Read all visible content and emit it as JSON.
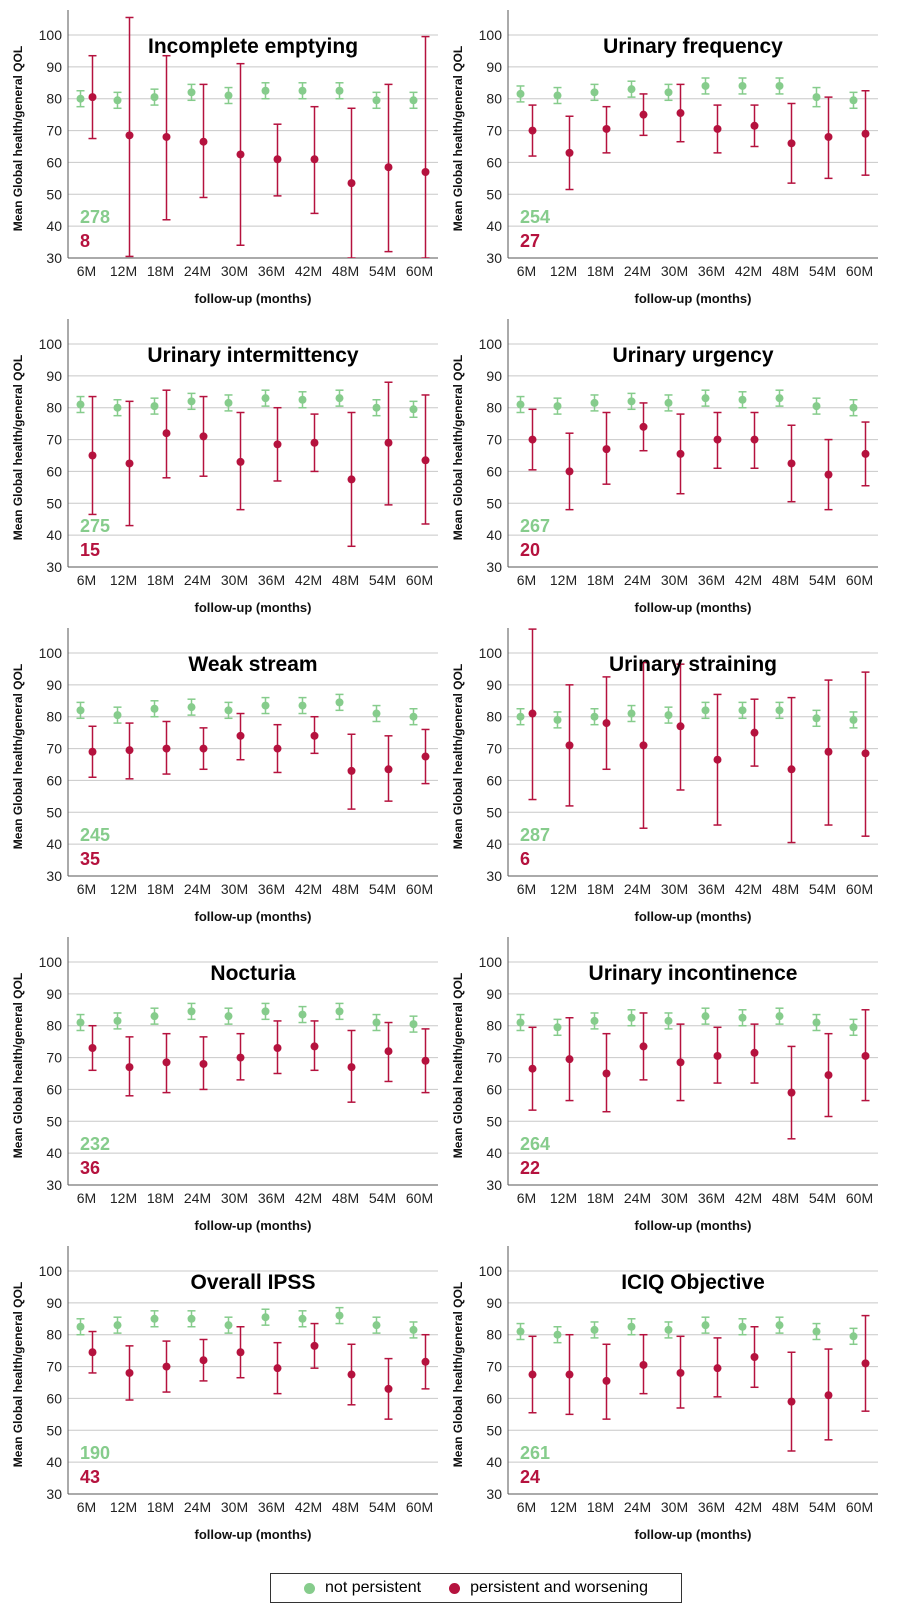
{
  "legend": {
    "not_persistent_label": "not persistent",
    "persistent_label": "persistent and worsening"
  },
  "colors": {
    "not_persistent": "#86cc8c",
    "persistent": "#b5123e",
    "grid": "#c8c8c8",
    "axis": "#555555"
  },
  "chart_data": [
    {
      "type": "scatter",
      "title": "Incomplete emptying",
      "xlabel": "follow-up (months)",
      "ylabel": "Mean Global health/general QOL",
      "ylim": [
        30,
        100
      ],
      "yticks": [
        30,
        40,
        50,
        60,
        70,
        80,
        90,
        100
      ],
      "categories": [
        "6M",
        "12M",
        "18M",
        "24M",
        "30M",
        "36M",
        "42M",
        "48M",
        "54M",
        "60M"
      ],
      "counts": {
        "not_persistent": "278",
        "persistent": "8"
      },
      "series": [
        {
          "name": "not persistent",
          "values": [
            80,
            79.5,
            80.5,
            82,
            81,
            82.5,
            82.5,
            82.5,
            79.5,
            79.5
          ],
          "lower": [
            77.5,
            77,
            78,
            79.5,
            78.5,
            80,
            80,
            80,
            77,
            77
          ],
          "upper": [
            82.5,
            82,
            83,
            84.5,
            83.5,
            85,
            85,
            85,
            82,
            82
          ]
        },
        {
          "name": "persistent and worsening",
          "values": [
            80.5,
            68.5,
            68,
            66.5,
            62.5,
            61,
            61,
            53.5,
            58.5,
            57
          ],
          "lower": [
            67.5,
            30.5,
            42,
            49,
            34,
            49.5,
            44,
            30,
            32,
            30
          ],
          "upper": [
            93.5,
            105.5,
            93.5,
            84.5,
            91,
            72,
            77.5,
            77,
            84.5,
            99.5
          ]
        }
      ]
    },
    {
      "type": "scatter",
      "title": "Urinary frequency",
      "xlabel": "follow-up (months)",
      "ylabel": "Mean Global health/general QOL",
      "ylim": [
        30,
        100
      ],
      "yticks": [
        30,
        40,
        50,
        60,
        70,
        80,
        90,
        100
      ],
      "categories": [
        "6M",
        "12M",
        "18M",
        "24M",
        "30M",
        "36M",
        "42M",
        "48M",
        "54M",
        "60M"
      ],
      "counts": {
        "not_persistent": "254",
        "persistent": "27"
      },
      "series": [
        {
          "name": "not persistent",
          "values": [
            81.5,
            81,
            82,
            83,
            82,
            84,
            84,
            84,
            80.5,
            79.5
          ],
          "lower": [
            79,
            78.5,
            79.5,
            80.5,
            79.5,
            81.5,
            81.5,
            81.5,
            77.5,
            77
          ],
          "upper": [
            84,
            83.5,
            84.5,
            85.5,
            84.5,
            86.5,
            86.5,
            86.5,
            83.5,
            82
          ]
        },
        {
          "name": "persistent and worsening",
          "values": [
            70,
            63,
            70.5,
            75,
            75.5,
            70.5,
            71.5,
            66,
            68,
            69
          ],
          "lower": [
            62,
            51.5,
            63,
            68.5,
            66.5,
            63,
            65,
            53.5,
            55,
            56
          ],
          "upper": [
            78,
            74.5,
            77.5,
            81.5,
            84.5,
            78,
            78,
            78.5,
            80.5,
            82.5
          ]
        }
      ]
    },
    {
      "type": "scatter",
      "title": "Urinary intermittency",
      "xlabel": "follow-up (months)",
      "ylabel": "Mean Global health/general QOL",
      "ylim": [
        30,
        100
      ],
      "yticks": [
        30,
        40,
        50,
        60,
        70,
        80,
        90,
        100
      ],
      "categories": [
        "6M",
        "12M",
        "18M",
        "24M",
        "30M",
        "36M",
        "42M",
        "48M",
        "54M",
        "60M"
      ],
      "counts": {
        "not_persistent": "275",
        "persistent": "15"
      },
      "series": [
        {
          "name": "not persistent",
          "values": [
            81,
            80,
            80.5,
            82,
            81.5,
            83,
            82.5,
            83,
            80,
            79.5
          ],
          "lower": [
            78.5,
            77.5,
            78,
            79.5,
            79,
            80.5,
            80,
            80.5,
            77.5,
            77
          ],
          "upper": [
            83.5,
            82.5,
            83,
            84.5,
            84,
            85.5,
            85,
            85.5,
            82.5,
            82
          ]
        },
        {
          "name": "persistent and worsening",
          "values": [
            65,
            62.5,
            72,
            71,
            63,
            68.5,
            69,
            57.5,
            69,
            63.5
          ],
          "lower": [
            46.5,
            43,
            58,
            58.5,
            48,
            57,
            60,
            36.5,
            49.5,
            43.5
          ],
          "upper": [
            83.5,
            82,
            85.5,
            83.5,
            78.5,
            80,
            78,
            78.5,
            88,
            84
          ]
        }
      ]
    },
    {
      "type": "scatter",
      "title": "Urinary urgency",
      "xlabel": "follow-up (months)",
      "ylabel": "Mean Global health/general QOL",
      "ylim": [
        30,
        100
      ],
      "yticks": [
        30,
        40,
        50,
        60,
        70,
        80,
        90,
        100
      ],
      "categories": [
        "6M",
        "12M",
        "18M",
        "24M",
        "30M",
        "36M",
        "42M",
        "48M",
        "54M",
        "60M"
      ],
      "counts": {
        "not_persistent": "267",
        "persistent": "20"
      },
      "series": [
        {
          "name": "not persistent",
          "values": [
            81,
            80.5,
            81.5,
            82,
            81.5,
            83,
            82.5,
            83,
            80.5,
            80
          ],
          "lower": [
            78.5,
            78,
            79,
            79.5,
            79,
            80.5,
            80,
            80.5,
            78,
            77.5
          ],
          "upper": [
            83.5,
            83,
            84,
            84.5,
            84,
            85.5,
            85,
            85.5,
            83,
            82.5
          ]
        },
        {
          "name": "persistent and worsening",
          "values": [
            70,
            60,
            67,
            74,
            65.5,
            70,
            70,
            62.5,
            59,
            65.5
          ],
          "lower": [
            60.5,
            48,
            56,
            66.5,
            53,
            61,
            61,
            50.5,
            48,
            55.5
          ],
          "upper": [
            79.5,
            72,
            78.5,
            81.5,
            78,
            78.5,
            78.5,
            74.5,
            70,
            75.5
          ]
        }
      ]
    },
    {
      "type": "scatter",
      "title": "Weak stream",
      "xlabel": "follow-up (months)",
      "ylabel": "Mean Global health/general QOL",
      "ylim": [
        30,
        100
      ],
      "yticks": [
        30,
        40,
        50,
        60,
        70,
        80,
        90,
        100
      ],
      "categories": [
        "6M",
        "12M",
        "18M",
        "24M",
        "30M",
        "36M",
        "42M",
        "48M",
        "54M",
        "60M"
      ],
      "counts": {
        "not_persistent": "245",
        "persistent": "35"
      },
      "series": [
        {
          "name": "not persistent",
          "values": [
            82,
            80.5,
            82.5,
            83,
            82,
            83.5,
            83.5,
            84.5,
            81,
            80
          ],
          "lower": [
            79.5,
            78,
            80,
            80.5,
            79.5,
            81,
            81,
            82,
            78.5,
            77.5
          ],
          "upper": [
            84.5,
            83,
            85,
            85.5,
            84.5,
            86,
            86,
            87,
            83.5,
            82.5
          ]
        },
        {
          "name": "persistent and worsening",
          "values": [
            69,
            69.5,
            70,
            70,
            74,
            70,
            74,
            63,
            63.5,
            67.5
          ],
          "lower": [
            61,
            60.5,
            62,
            63.5,
            66.5,
            62.5,
            68.5,
            51,
            53.5,
            59
          ],
          "upper": [
            77,
            78,
            78.5,
            76.5,
            81,
            77.5,
            80,
            74.5,
            74,
            76
          ]
        }
      ]
    },
    {
      "type": "scatter",
      "title": "Urinary straining",
      "xlabel": "follow-up (months)",
      "ylabel": "Mean Global health/general QOL",
      "ylim": [
        30,
        100
      ],
      "yticks": [
        30,
        40,
        50,
        60,
        70,
        80,
        90,
        100
      ],
      "categories": [
        "6M",
        "12M",
        "18M",
        "24M",
        "30M",
        "36M",
        "42M",
        "48M",
        "54M",
        "60M"
      ],
      "counts": {
        "not_persistent": "287",
        "persistent": "6"
      },
      "series": [
        {
          "name": "not persistent",
          "values": [
            80,
            79,
            80,
            81,
            80.5,
            82,
            82,
            82,
            79.5,
            79
          ],
          "lower": [
            77.5,
            76.5,
            77.5,
            78.5,
            78,
            79.5,
            79.5,
            79.5,
            77,
            76.5
          ],
          "upper": [
            82.5,
            81.5,
            82.5,
            83.5,
            83,
            84.5,
            84.5,
            84.5,
            82,
            81.5
          ]
        },
        {
          "name": "persistent and worsening",
          "values": [
            81,
            71,
            78,
            71,
            77,
            66.5,
            75,
            63.5,
            69,
            68.5
          ],
          "lower": [
            54,
            52,
            63.5,
            45,
            57,
            46,
            64.5,
            40.5,
            46,
            42.5
          ],
          "upper": [
            107.5,
            90,
            92.5,
            97,
            96.5,
            87,
            85.5,
            86,
            91.5,
            94
          ]
        }
      ]
    },
    {
      "type": "scatter",
      "title": "Nocturia",
      "xlabel": "follow-up (months)",
      "ylabel": "Mean Global health/general QOL",
      "ylim": [
        30,
        100
      ],
      "yticks": [
        30,
        40,
        50,
        60,
        70,
        80,
        90,
        100
      ],
      "categories": [
        "6M",
        "12M",
        "18M",
        "24M",
        "30M",
        "36M",
        "42M",
        "48M",
        "54M",
        "60M"
      ],
      "counts": {
        "not_persistent": "232",
        "persistent": "36"
      },
      "series": [
        {
          "name": "not persistent",
          "values": [
            81,
            81.5,
            83,
            84.5,
            83,
            84.5,
            83.5,
            84.5,
            81,
            80.5
          ],
          "lower": [
            78.5,
            79,
            80.5,
            82,
            80.5,
            82,
            81,
            82,
            78.5,
            78
          ],
          "upper": [
            83.5,
            84,
            85.5,
            87,
            85.5,
            87,
            86,
            87,
            83.5,
            83
          ]
        },
        {
          "name": "persistent and worsening",
          "values": [
            73,
            67,
            68.5,
            68,
            70,
            73,
            73.5,
            67,
            72,
            69
          ],
          "lower": [
            66,
            58,
            59,
            60,
            63,
            65,
            66,
            56,
            62.5,
            59
          ],
          "upper": [
            80,
            76.5,
            77.5,
            76.5,
            77.5,
            81.5,
            81.5,
            78.5,
            81,
            79
          ]
        }
      ]
    },
    {
      "type": "scatter",
      "title": "Urinary incontinence",
      "xlabel": "follow-up (months)",
      "ylabel": "Mean Global health/general QOL",
      "ylim": [
        30,
        100
      ],
      "yticks": [
        30,
        40,
        50,
        60,
        70,
        80,
        90,
        100
      ],
      "categories": [
        "6M",
        "12M",
        "18M",
        "24M",
        "30M",
        "36M",
        "42M",
        "48M",
        "54M",
        "60M"
      ],
      "counts": {
        "not_persistent": "264",
        "persistent": "22"
      },
      "series": [
        {
          "name": "not persistent",
          "values": [
            81,
            79.5,
            81.5,
            82.5,
            81.5,
            83,
            82.5,
            83,
            81,
            79.5
          ],
          "lower": [
            78.5,
            77,
            79,
            80,
            79,
            80.5,
            80,
            80.5,
            78.5,
            77
          ],
          "upper": [
            83.5,
            82,
            84,
            85,
            84,
            85.5,
            85,
            85.5,
            83.5,
            82
          ]
        },
        {
          "name": "persistent and worsening",
          "values": [
            66.5,
            69.5,
            65,
            73.5,
            68.5,
            70.5,
            71.5,
            59,
            64.5,
            70.5
          ],
          "lower": [
            53.5,
            56.5,
            53,
            63,
            56.5,
            62,
            62,
            44.5,
            51.5,
            56.5
          ],
          "upper": [
            79.5,
            82.5,
            77.5,
            84,
            80.5,
            79.5,
            80.5,
            73.5,
            77.5,
            85
          ]
        }
      ]
    },
    {
      "type": "scatter",
      "title": "Overall IPSS",
      "xlabel": "follow-up (months)",
      "ylabel": "Mean Global health/general QOL",
      "ylim": [
        30,
        100
      ],
      "yticks": [
        30,
        40,
        50,
        60,
        70,
        80,
        90,
        100
      ],
      "categories": [
        "6M",
        "12M",
        "18M",
        "24M",
        "30M",
        "36M",
        "42M",
        "48M",
        "54M",
        "60M"
      ],
      "counts": {
        "not_persistent": "190",
        "persistent": "43"
      },
      "series": [
        {
          "name": "not persistent",
          "values": [
            82.5,
            83,
            85,
            85,
            83,
            85.5,
            85,
            86,
            83,
            81.5
          ],
          "lower": [
            80,
            80.5,
            82.5,
            82.5,
            80.5,
            83,
            82.5,
            83.5,
            80.5,
            79
          ],
          "upper": [
            85,
            85.5,
            87.5,
            87.5,
            85.5,
            88,
            87.5,
            88.5,
            85.5,
            84
          ]
        },
        {
          "name": "persistent and worsening",
          "values": [
            74.5,
            68,
            70,
            72,
            74.5,
            69.5,
            76.5,
            67.5,
            63,
            71.5
          ],
          "lower": [
            68,
            59.5,
            62,
            65.5,
            66.5,
            61.5,
            69.5,
            58,
            53.5,
            63
          ],
          "upper": [
            81,
            76.5,
            78,
            78.5,
            82.5,
            77.5,
            83.5,
            77,
            72.5,
            80
          ]
        }
      ]
    },
    {
      "type": "scatter",
      "title": "ICIQ Objective",
      "xlabel": "follow-up (months)",
      "ylabel": "Mean Global health/general QOL",
      "ylim": [
        30,
        100
      ],
      "yticks": [
        30,
        40,
        50,
        60,
        70,
        80,
        90,
        100
      ],
      "categories": [
        "6M",
        "12M",
        "18M",
        "24M",
        "30M",
        "36M",
        "42M",
        "48M",
        "54M",
        "60M"
      ],
      "counts": {
        "not_persistent": "261",
        "persistent": "24"
      },
      "series": [
        {
          "name": "not persistent",
          "values": [
            81,
            80,
            81.5,
            82.5,
            81.5,
            83,
            82.5,
            83,
            81,
            79.5
          ],
          "lower": [
            78.5,
            77.5,
            79,
            80,
            79,
            80.5,
            80,
            80.5,
            78.5,
            77
          ],
          "upper": [
            83.5,
            82.5,
            84,
            85,
            84,
            85.5,
            85,
            85.5,
            83.5,
            82
          ]
        },
        {
          "name": "persistent and worsening",
          "values": [
            67.5,
            67.5,
            65.5,
            70.5,
            68,
            69.5,
            73,
            59,
            61,
            71
          ],
          "lower": [
            55.5,
            55,
            53.5,
            61.5,
            57,
            60.5,
            63.5,
            43.5,
            47,
            56
          ],
          "upper": [
            79.5,
            80,
            77,
            80,
            79.5,
            79,
            82.5,
            74.5,
            75.5,
            86
          ]
        }
      ]
    }
  ]
}
